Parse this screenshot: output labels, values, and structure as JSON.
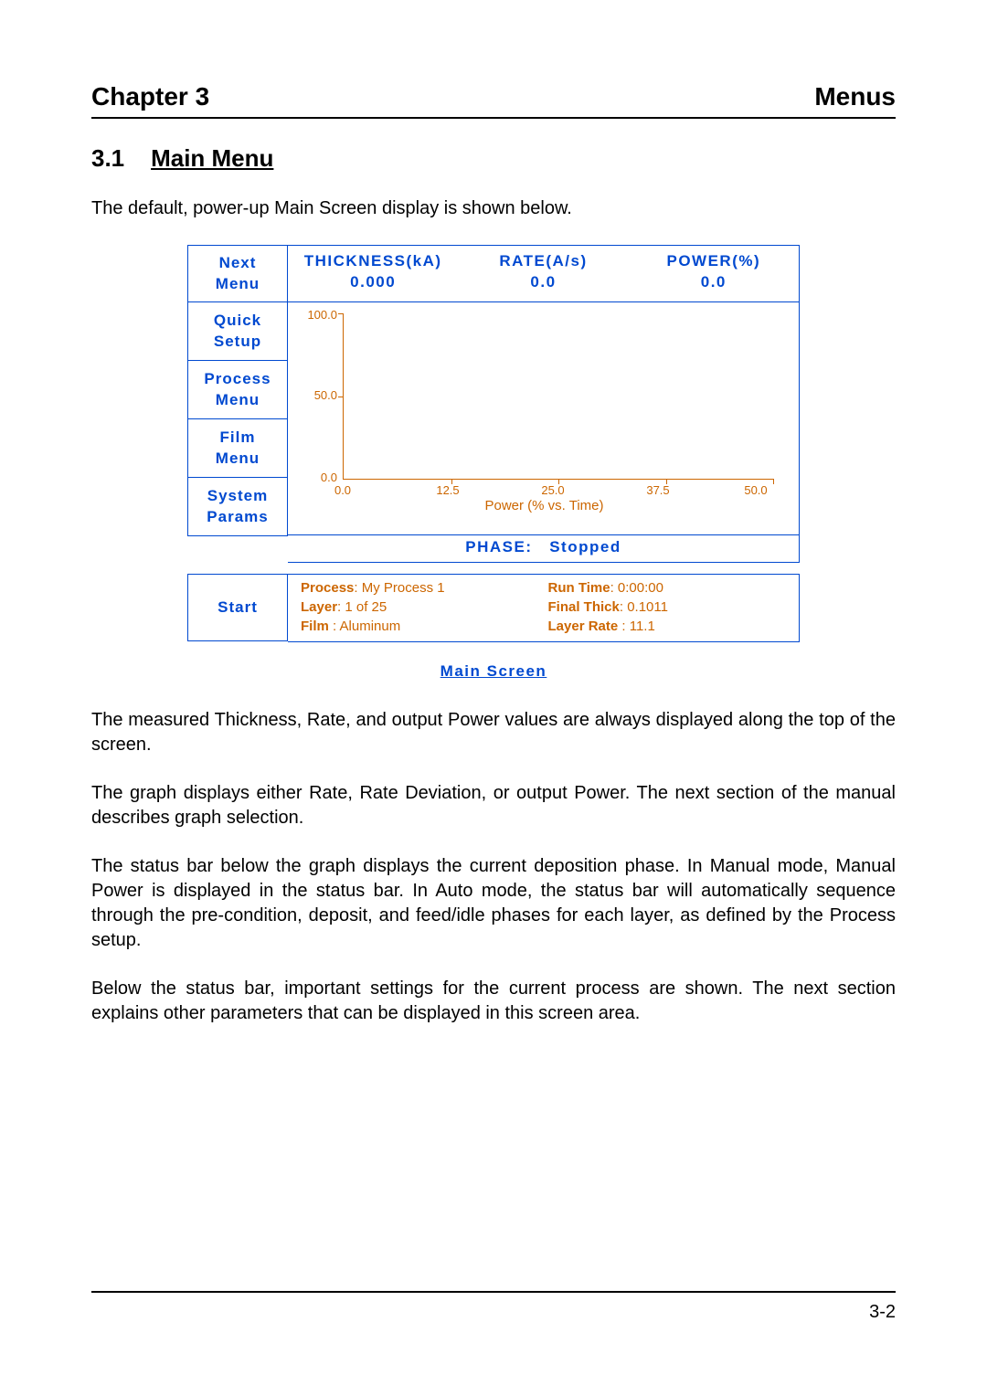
{
  "header": {
    "left": "Chapter 3",
    "right": "Menus"
  },
  "section": {
    "number": "3.1",
    "title": "Main Menu"
  },
  "intro": "The default, power-up Main Screen display is shown below.",
  "screen": {
    "sidebar": {
      "items": [
        {
          "label": "Next\nMenu"
        },
        {
          "label": "Quick\nSetup"
        },
        {
          "label": "Process\nMenu"
        },
        {
          "label": "Film\nMenu"
        },
        {
          "label": "System\nParams"
        },
        {
          "label": "Start"
        }
      ]
    },
    "readouts": {
      "thickness": {
        "label": "THICKNESS(kA)",
        "value": "0.000"
      },
      "rate": {
        "label": "RATE(A/s)",
        "value": "0.0"
      },
      "power": {
        "label": "POWER(%)",
        "value": "0.0"
      }
    },
    "chart": {
      "type": "line",
      "title": "Power (% vs. Time)",
      "ylim": [
        0.0,
        100.0
      ],
      "yticks": [
        "100.0",
        "50.0",
        "0.0"
      ],
      "xlim": [
        0.0,
        50.0
      ],
      "xticks": [
        "0.0",
        "12.5",
        "25.0",
        "37.5",
        "50.0"
      ],
      "axis_color": "#cc6600",
      "label_fontsize": 13,
      "background_color": "#ffffff"
    },
    "phase": {
      "label": "PHASE:",
      "value": "Stopped"
    },
    "info": {
      "process": {
        "k": "Process",
        "v": "My Process 1"
      },
      "runtime": {
        "k": "Run Time",
        "v": "0:00:00"
      },
      "layer": {
        "k": "Layer",
        "v": "1 of 25"
      },
      "finalthick": {
        "k": "Final Thick",
        "v": "0.1011"
      },
      "film": {
        "k": "Film",
        "v": "Aluminum"
      },
      "layerrate": {
        "k": "Layer Rate",
        "v": "11.1"
      }
    },
    "caption": "Main Screen",
    "colors": {
      "accent": "#0049d0",
      "data": "#cc6600",
      "border": "#0049d0"
    }
  },
  "paragraphs": [
    "The measured Thickness, Rate, and output Power values are always displayed along the top of the screen.",
    "The graph displays either Rate, Rate Deviation, or output Power.  The next section of the manual describes graph selection.",
    "The status bar below the graph displays the current deposition phase.  In Manual mode, Manual Power is displayed in the status bar.  In Auto mode, the status bar will automatically sequence through the pre-condition, deposit, and feed/idle phases for each layer, as defined by the Process setup.",
    "Below the status bar, important settings for the current process are shown.  The next section explains other parameters that can be displayed in this screen area."
  ],
  "footer": {
    "page": "3-2"
  }
}
